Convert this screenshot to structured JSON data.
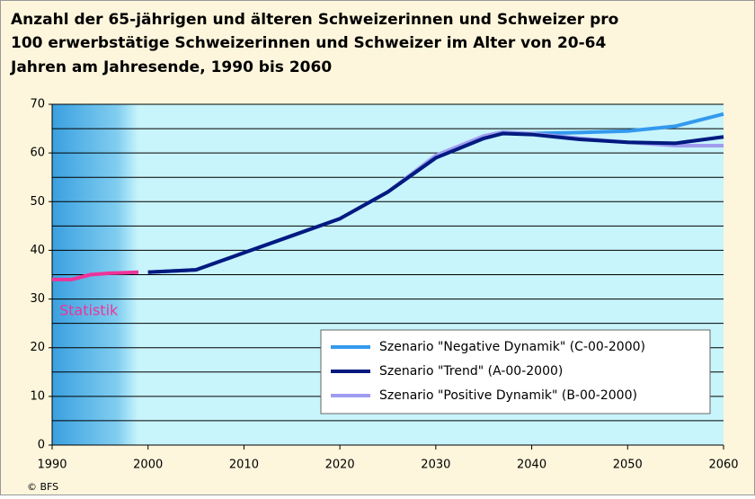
{
  "chart_data": {
    "type": "line",
    "title": [
      "Anzahl der 65-jährigen und älteren Schweizerinnen und Schweizer pro",
      "100 erwerbstätige Schweizerinnen und Schweizer im Alter von 20-64",
      "Jahren am Jahresende, 1990 bis 2060"
    ],
    "source": "© BFS",
    "x": [
      2000,
      2005,
      2010,
      2015,
      2020,
      2025,
      2030,
      2035,
      2037,
      2040,
      2045,
      2050,
      2055,
      2060
    ],
    "series": [
      {
        "name": "Statistik",
        "color": "#ee3399",
        "x": [
          1990,
          1992,
          1994,
          1996,
          1999
        ],
        "values": [
          34,
          34,
          35,
          35.3,
          35.5
        ]
      },
      {
        "name": "Szenario \"Negative Dynamik\" (C-00-2000)",
        "color": "#3399ee",
        "values": [
          35.5,
          36,
          39.5,
          43,
          46.5,
          52,
          59,
          63,
          64,
          64,
          64.2,
          64.5,
          65.5,
          68
        ]
      },
      {
        "name": "Szenario \"Positive Dynamik\" (B-00-2000)",
        "color": "#a09cf0",
        "values": [
          35.5,
          36,
          39.5,
          43,
          46.5,
          52,
          59.5,
          63.5,
          64.3,
          64,
          63,
          62.2,
          61.5,
          61.5
        ]
      },
      {
        "name": "Szenario \"Trend\" (A-00-2000)",
        "color": "#001a80",
        "values": [
          35.5,
          36,
          39.5,
          43,
          46.5,
          52,
          59,
          63,
          64,
          63.8,
          62.8,
          62.2,
          62,
          63.3
        ]
      }
    ],
    "legend_order": [
      1,
      3,
      2
    ],
    "xlim": [
      1990,
      2060
    ],
    "xticks": [
      1990,
      2000,
      2010,
      2020,
      2030,
      2040,
      2050,
      2060
    ],
    "ylim": [
      0,
      70
    ],
    "yticks": [
      0,
      10,
      20,
      30,
      40,
      50,
      60,
      70
    ],
    "minor_grid": [
      5,
      15,
      25,
      35,
      45,
      55,
      65
    ],
    "grid": true
  }
}
